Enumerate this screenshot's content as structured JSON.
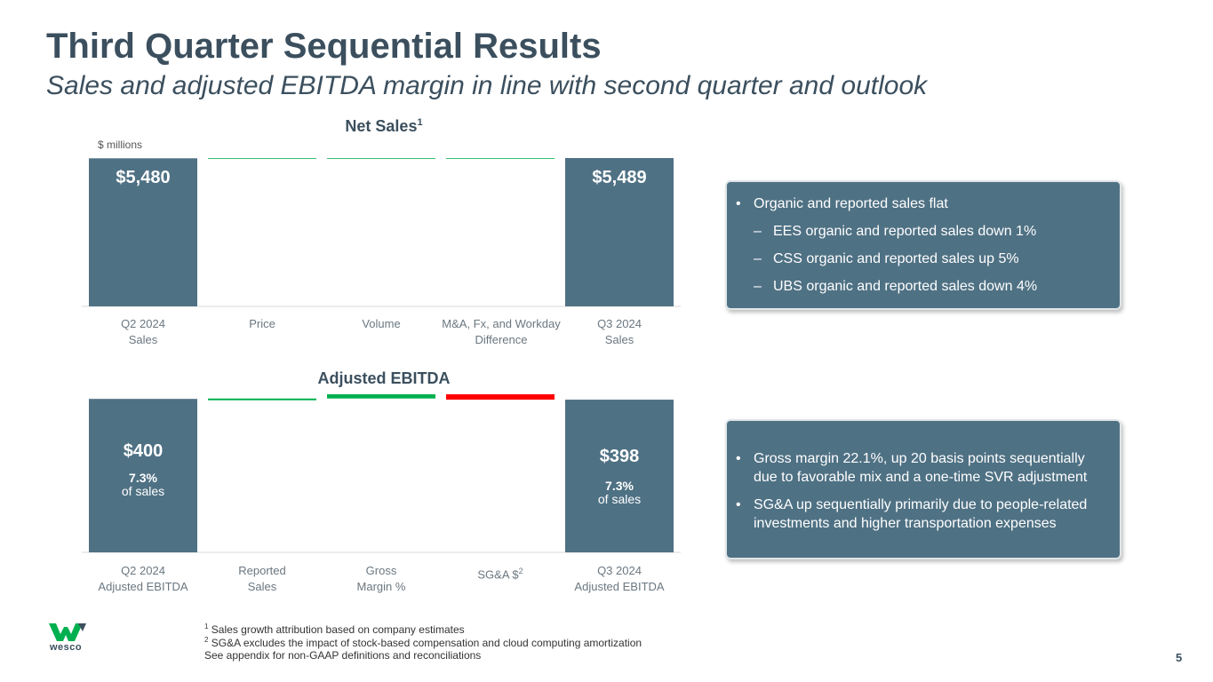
{
  "header": {
    "title": "Third Quarter Sequential Results",
    "subtitle": "Sales and adjusted EBITDA margin in line with second quarter and outlook"
  },
  "colors": {
    "bar": "#4f7184",
    "increase": "#00b04f",
    "decrease": "#ff0000",
    "text_dark": "#3b4f5e"
  },
  "chart_data": [
    {
      "type": "bar",
      "title": "Net Sales",
      "title_sup": "1",
      "units": "$ millions",
      "categories": [
        [
          "Q2 2024",
          "Sales"
        ],
        [
          "Price",
          ""
        ],
        [
          "Volume",
          ""
        ],
        [
          "M&A, Fx, and Workday",
          "Difference"
        ],
        [
          "Q3 2024",
          "Sales"
        ]
      ],
      "waterfall": [
        {
          "kind": "total",
          "value": 5480,
          "label": "$5,480"
        },
        {
          "kind": "delta",
          "value": 2
        },
        {
          "kind": "delta",
          "value": 0
        },
        {
          "kind": "delta",
          "value": 7
        },
        {
          "kind": "total",
          "value": 5489,
          "label": "$5,489"
        }
      ],
      "ylim": [
        0,
        5489
      ]
    },
    {
      "type": "bar",
      "title": "Adjusted EBITDA",
      "categories": [
        [
          "Q2 2024",
          "Adjusted EBITDA"
        ],
        [
          "Reported",
          "Sales"
        ],
        [
          "Gross",
          "Margin %"
        ],
        [
          "SG&A $",
          ""
        ],
        [
          "Q3 2024",
          "Adjusted EBITDA"
        ]
      ],
      "category_sup": [
        "",
        "",
        "",
        "2",
        ""
      ],
      "waterfall": [
        {
          "kind": "total",
          "value": 400,
          "label": "$400",
          "margin": "7.3%",
          "margin_label": "of sales"
        },
        {
          "kind": "delta",
          "value": 1
        },
        {
          "kind": "delta",
          "value": 11
        },
        {
          "kind": "delta",
          "value": -14
        },
        {
          "kind": "total",
          "value": 398,
          "label": "$398",
          "margin": "7.3%",
          "margin_label": "of sales"
        }
      ],
      "ylim": [
        0,
        412
      ]
    }
  ],
  "callouts": {
    "sales": {
      "bullet": "Organic and reported sales flat",
      "subs": [
        "EES organic and reported sales down 1%",
        "CSS organic and reported sales up 5%",
        "UBS organic and reported sales down 4%"
      ]
    },
    "ebitda": {
      "bullets": [
        "Gross margin 22.1%, up 20 basis points sequentially due to favorable mix and a one-time SVR adjustment",
        "SG&A up sequentially primarily due to people-related investments and higher transportation expenses"
      ]
    }
  },
  "footer": {
    "note1_sup": "1",
    "note1": "Sales growth attribution based on company estimates",
    "note2_sup": "2",
    "note2": "SG&A excludes the impact of stock-based compensation and cloud computing amortization",
    "note3": "See appendix for non-GAAP definitions and reconciliations",
    "logo_text": "wesco",
    "page_number": "5"
  }
}
